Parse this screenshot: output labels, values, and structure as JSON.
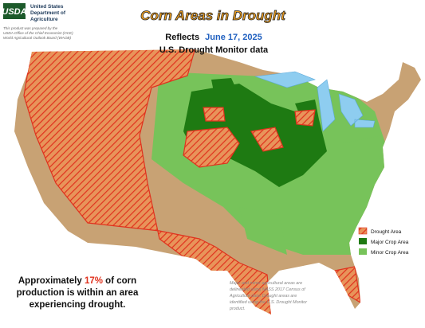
{
  "header": {
    "logo": "USDA",
    "agency_lines": [
      "United States",
      "Department of",
      "Agriculture"
    ],
    "credit_lines": [
      "This product was prepared by the",
      "USDA Office of the Chief Economist (OCE)",
      "World Agricultural Outlook Board (WAOB)"
    ],
    "title": "Corn Areas in Drought",
    "reflects": "Reflects",
    "date": "June 17, 2025",
    "source": "U.S. Drought Monitor data"
  },
  "legend": [
    "Drought Area",
    "Major Crop Area",
    "Minor Crop Area"
  ],
  "summary": {
    "before": "Approximately ",
    "share": "17%",
    "after_first_line": " of corn",
    "lines": [
      "production is within an area",
      "experiencing drought."
    ]
  },
  "footnote": [
    "Major and minor agricultural areas are",
    "delineated using NASS 2017 Census of",
    "Agriculture data. Drought areas are",
    "identified using the U.S. Drought Monitor",
    "product."
  ]
}
